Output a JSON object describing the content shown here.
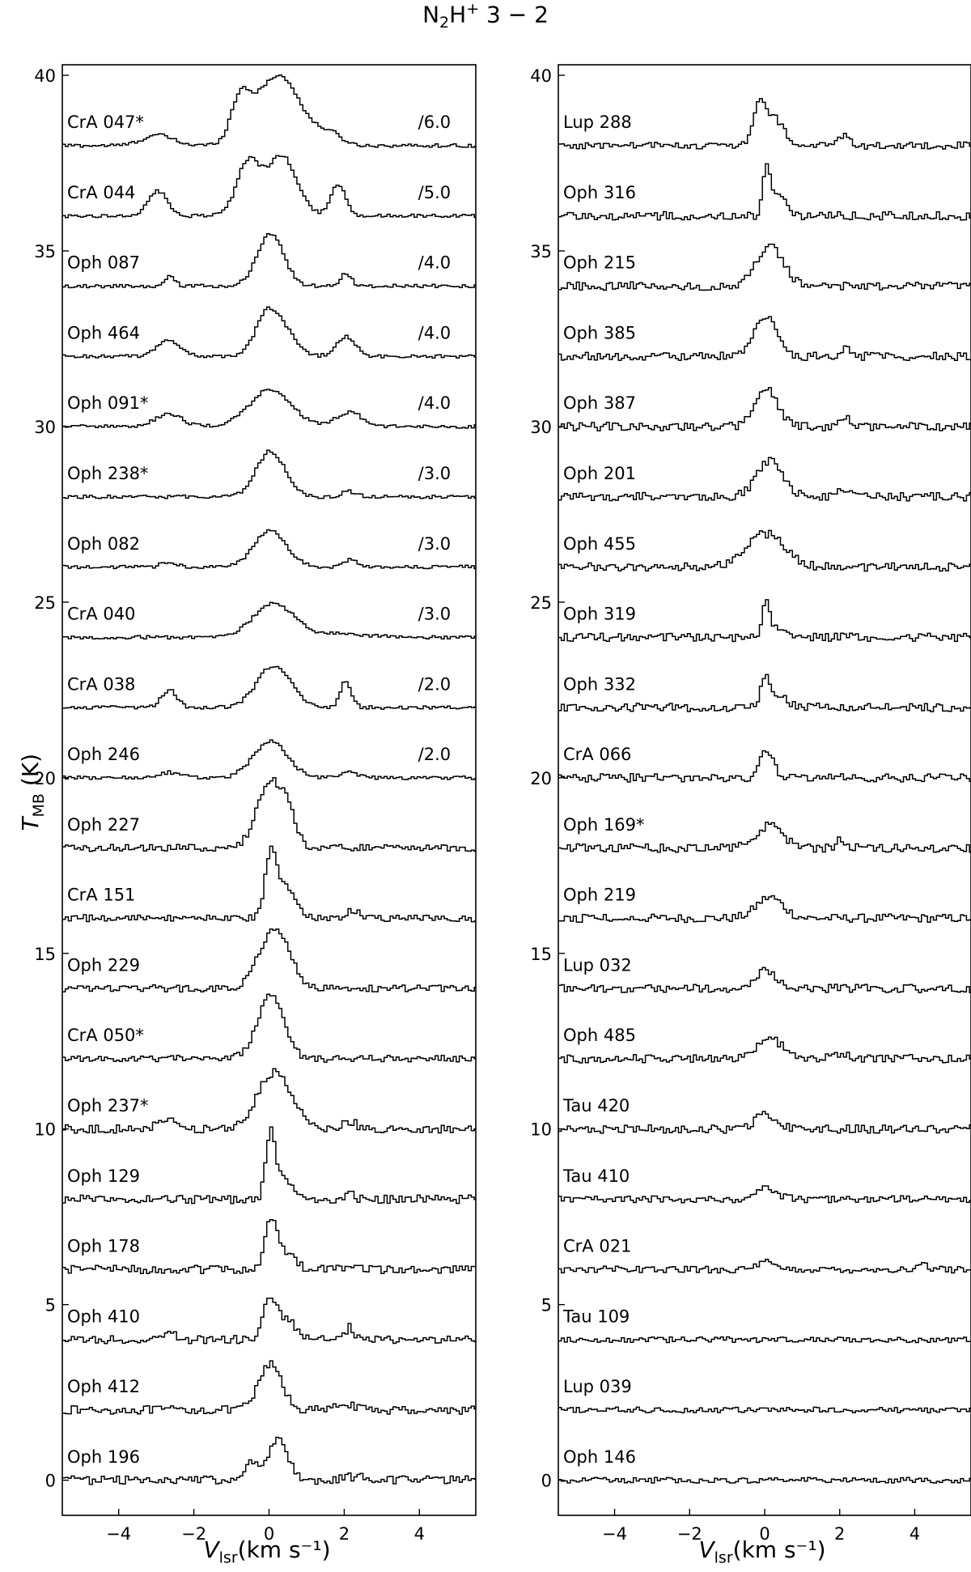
{
  "figure": {
    "title_main": "N",
    "title_sub": "2",
    "title_mid": "H",
    "title_sup": "+",
    "title_tail": " 3 − 2",
    "ylabel_main": "T",
    "ylabel_sub": "MB",
    "ylabel_tail": " (K)",
    "xlabel_main": "V",
    "xlabel_sub": "lsr",
    "xlabel_tail": "(km s⁻¹)"
  },
  "chart_data": [
    {
      "type": "line",
      "panel": "left",
      "xlim": [
        -5.5,
        5.5
      ],
      "ylim": [
        -1.0,
        40.3
      ],
      "xticks": [
        -4,
        -2,
        0,
        2,
        4
      ],
      "yticks": [
        0,
        5,
        10,
        15,
        20,
        25,
        30,
        35,
        40
      ],
      "series": [
        {
          "name": "CrA 047*",
          "offset": 38,
          "scale": "/6.0",
          "peaks": [
            {
              "v": 0.2,
              "a": 2.0,
              "w": 0.6
            },
            {
              "v": -0.8,
              "a": 1.1,
              "w": 0.25
            },
            {
              "v": -3.0,
              "a": 0.3,
              "w": 0.4
            },
            {
              "v": 1.6,
              "a": 0.3,
              "w": 0.3
            }
          ],
          "noise": 0.05
        },
        {
          "name": "CrA 044",
          "offset": 36,
          "scale": "/5.0",
          "peaks": [
            {
              "v": 0.3,
              "a": 1.7,
              "w": 0.4
            },
            {
              "v": -0.6,
              "a": 1.5,
              "w": 0.3
            },
            {
              "v": -3.0,
              "a": 0.7,
              "w": 0.25
            },
            {
              "v": 1.8,
              "a": 0.9,
              "w": 0.2
            }
          ],
          "noise": 0.05
        },
        {
          "name": "Oph 087",
          "offset": 34,
          "scale": "/4.0",
          "peaks": [
            {
              "v": 0.0,
              "a": 1.5,
              "w": 0.35
            },
            {
              "v": -2.7,
              "a": 0.25,
              "w": 0.15
            },
            {
              "v": 2.0,
              "a": 0.35,
              "w": 0.15
            }
          ],
          "noise": 0.05
        },
        {
          "name": "Oph 464",
          "offset": 32,
          "scale": "/4.0",
          "peaks": [
            {
              "v": -0.1,
              "a": 1.2,
              "w": 0.3
            },
            {
              "v": 0.4,
              "a": 0.6,
              "w": 0.3
            },
            {
              "v": -2.7,
              "a": 0.45,
              "w": 0.3
            },
            {
              "v": 2.0,
              "a": 0.55,
              "w": 0.25
            }
          ],
          "noise": 0.05
        },
        {
          "name": "Oph 091*",
          "offset": 30,
          "scale": "/4.0",
          "peaks": [
            {
              "v": 0.0,
              "a": 1.05,
              "w": 0.55
            },
            {
              "v": -2.7,
              "a": 0.35,
              "w": 0.35
            },
            {
              "v": 2.1,
              "a": 0.4,
              "w": 0.35
            }
          ],
          "noise": 0.05
        },
        {
          "name": "Oph 238*",
          "offset": 28,
          "scale": "/3.0",
          "peaks": [
            {
              "v": 0.0,
              "a": 1.3,
              "w": 0.38
            },
            {
              "v": 2.1,
              "a": 0.15,
              "w": 0.2
            }
          ],
          "noise": 0.05
        },
        {
          "name": "Oph 082",
          "offset": 26,
          "scale": "/3.0",
          "peaks": [
            {
              "v": 0.0,
              "a": 1.05,
              "w": 0.42
            },
            {
              "v": -2.7,
              "a": 0.15,
              "w": 0.2
            },
            {
              "v": 2.1,
              "a": 0.2,
              "w": 0.2
            }
          ],
          "noise": 0.05
        },
        {
          "name": "CrA 040",
          "offset": 24,
          "scale": "/3.0",
          "peaks": [
            {
              "v": 0.1,
              "a": 0.95,
              "w": 0.55
            },
            {
              "v": 2.0,
              "a": 0.1,
              "w": 0.6
            }
          ],
          "noise": 0.05
        },
        {
          "name": "CrA 038",
          "offset": 22,
          "scale": "/2.0",
          "peaks": [
            {
              "v": 0.1,
              "a": 1.2,
              "w": 0.45
            },
            {
              "v": -2.7,
              "a": 0.5,
              "w": 0.2
            },
            {
              "v": 2.0,
              "a": 0.75,
              "w": 0.15
            }
          ],
          "noise": 0.05
        },
        {
          "name": "Oph 246",
          "offset": 20,
          "scale": "/2.0",
          "peaks": [
            {
              "v": 0.0,
              "a": 1.05,
              "w": 0.45
            },
            {
              "v": -2.7,
              "a": 0.15,
              "w": 0.3
            },
            {
              "v": 2.1,
              "a": 0.2,
              "w": 0.2
            }
          ],
          "noise": 0.05
        },
        {
          "name": "Oph 227",
          "offset": 18,
          "scale": "",
          "peaks": [
            {
              "v": 0.0,
              "a": 1.9,
              "w": 0.35
            },
            {
              "v": 0.5,
              "a": 0.6,
              "w": 0.2
            }
          ],
          "noise": 0.1
        },
        {
          "name": "CrA 151",
          "offset": 16,
          "scale": "",
          "peaks": [
            {
              "v": 0.0,
              "a": 1.7,
              "w": 0.15
            },
            {
              "v": 0.4,
              "a": 0.9,
              "w": 0.25
            },
            {
              "v": 2.2,
              "a": 0.2,
              "w": 0.2
            }
          ],
          "noise": 0.1
        },
        {
          "name": "Oph 229",
          "offset": 14,
          "scale": "",
          "peaks": [
            {
              "v": 0.1,
              "a": 1.7,
              "w": 0.4
            }
          ],
          "noise": 0.1
        },
        {
          "name": "CrA 050*",
          "offset": 12,
          "scale": "",
          "peaks": [
            {
              "v": 0.0,
              "a": 1.8,
              "w": 0.35
            }
          ],
          "noise": 0.1
        },
        {
          "name": "Oph 237*",
          "offset": 10,
          "scale": "",
          "peaks": [
            {
              "v": 0.1,
              "a": 1.6,
              "w": 0.45
            },
            {
              "v": -2.7,
              "a": 0.2,
              "w": 0.3
            },
            {
              "v": 2.1,
              "a": 0.2,
              "w": 0.2
            }
          ],
          "noise": 0.12
        },
        {
          "name": "Oph 129",
          "offset": 8,
          "scale": "",
          "peaks": [
            {
              "v": 0.0,
              "a": 1.65,
              "w": 0.12
            },
            {
              "v": 0.3,
              "a": 0.6,
              "w": 0.25
            },
            {
              "v": 2.1,
              "a": 0.3,
              "w": 0.1
            }
          ],
          "noise": 0.12
        },
        {
          "name": "Oph 178",
          "offset": 6,
          "scale": "",
          "peaks": [
            {
              "v": 0.0,
              "a": 1.35,
              "w": 0.15
            },
            {
              "v": 0.4,
              "a": 0.5,
              "w": 0.25
            }
          ],
          "noise": 0.12
        },
        {
          "name": "Oph 410",
          "offset": 4,
          "scale": "",
          "peaks": [
            {
              "v": 0.0,
              "a": 1.15,
              "w": 0.2
            },
            {
              "v": 0.5,
              "a": 0.5,
              "w": 0.2
            },
            {
              "v": -2.7,
              "a": 0.25,
              "w": 0.15
            },
            {
              "v": 2.1,
              "a": 0.35,
              "w": 0.1
            }
          ],
          "noise": 0.12
        },
        {
          "name": "Oph 412",
          "offset": 2,
          "scale": "",
          "peaks": [
            {
              "v": 0.0,
              "a": 1.3,
              "w": 0.3
            },
            {
              "v": 2.0,
              "a": 0.2,
              "w": 0.2
            }
          ],
          "noise": 0.12
        },
        {
          "name": "Oph 196",
          "offset": 0,
          "scale": "",
          "peaks": [
            {
              "v": 0.2,
              "a": 1.2,
              "w": 0.25
            },
            {
              "v": -0.5,
              "a": 0.55,
              "w": 0.2
            },
            {
              "v": 2.2,
              "a": 0.1,
              "w": 0.3
            }
          ],
          "noise": 0.12
        }
      ]
    },
    {
      "type": "line",
      "panel": "right",
      "xlim": [
        -5.5,
        5.5
      ],
      "ylim": [
        -1.0,
        40.3
      ],
      "xticks": [
        -4,
        -2,
        0,
        2,
        4
      ],
      "yticks": [
        0,
        5,
        10,
        15,
        20,
        25,
        30,
        35,
        40
      ],
      "series": [
        {
          "name": "Lup 288",
          "offset": 38,
          "scale": "",
          "peaks": [
            {
              "v": -0.2,
              "a": 1.1,
              "w": 0.15
            },
            {
              "v": 0.2,
              "a": 0.8,
              "w": 0.25
            },
            {
              "v": 2.1,
              "a": 0.3,
              "w": 0.15
            }
          ],
          "noise": 0.1
        },
        {
          "name": "Oph 316",
          "offset": 36,
          "scale": "",
          "peaks": [
            {
              "v": 0.0,
              "a": 1.2,
              "w": 0.1
            },
            {
              "v": 0.3,
              "a": 0.6,
              "w": 0.2
            }
          ],
          "noise": 0.12
        },
        {
          "name": "Oph 215",
          "offset": 34,
          "scale": "",
          "peaks": [
            {
              "v": 0.1,
              "a": 1.15,
              "w": 0.35
            }
          ],
          "noise": 0.12
        },
        {
          "name": "Oph 385",
          "offset": 32,
          "scale": "",
          "peaks": [
            {
              "v": 0.0,
              "a": 1.1,
              "w": 0.3
            },
            {
              "v": 2.1,
              "a": 0.2,
              "w": 0.15
            }
          ],
          "noise": 0.12
        },
        {
          "name": "Oph 387",
          "offset": 30,
          "scale": "",
          "peaks": [
            {
              "v": 0.0,
              "a": 1.05,
              "w": 0.3
            },
            {
              "v": 2.1,
              "a": 0.25,
              "w": 0.15
            }
          ],
          "noise": 0.12
        },
        {
          "name": "Oph 201",
          "offset": 28,
          "scale": "",
          "peaks": [
            {
              "v": 0.1,
              "a": 1.0,
              "w": 0.35
            },
            {
              "v": 2.1,
              "a": 0.2,
              "w": 0.2
            }
          ],
          "noise": 0.12
        },
        {
          "name": "Oph 455",
          "offset": 26,
          "scale": "",
          "peaks": [
            {
              "v": 0.0,
              "a": 0.95,
              "w": 0.5
            }
          ],
          "noise": 0.12
        },
        {
          "name": "Oph 319",
          "offset": 24,
          "scale": "",
          "peaks": [
            {
              "v": 0.0,
              "a": 0.9,
              "w": 0.08
            },
            {
              "v": 0.3,
              "a": 0.3,
              "w": 0.3
            }
          ],
          "noise": 0.12
        },
        {
          "name": "Oph 332",
          "offset": 22,
          "scale": "",
          "peaks": [
            {
              "v": 0.0,
              "a": 0.8,
              "w": 0.15
            },
            {
              "v": 0.4,
              "a": 0.3,
              "w": 0.2
            }
          ],
          "noise": 0.12
        },
        {
          "name": "CrA 066",
          "offset": 20,
          "scale": "",
          "peaks": [
            {
              "v": 0.0,
              "a": 0.75,
              "w": 0.18
            }
          ],
          "noise": 0.12
        },
        {
          "name": "Oph 169*",
          "offset": 18,
          "scale": "",
          "peaks": [
            {
              "v": 0.1,
              "a": 0.65,
              "w": 0.35
            },
            {
              "v": 2.0,
              "a": 0.25,
              "w": 0.1
            }
          ],
          "noise": 0.12
        },
        {
          "name": "Oph 219",
          "offset": 16,
          "scale": "",
          "peaks": [
            {
              "v": 0.1,
              "a": 0.6,
              "w": 0.35
            }
          ],
          "noise": 0.12
        },
        {
          "name": "Lup 032",
          "offset": 14,
          "scale": "",
          "peaks": [
            {
              "v": 0.0,
              "a": 0.55,
              "w": 0.25
            }
          ],
          "noise": 0.12
        },
        {
          "name": "Oph 485",
          "offset": 12,
          "scale": "",
          "peaks": [
            {
              "v": 0.1,
              "a": 0.55,
              "w": 0.35
            },
            {
              "v": 2.0,
              "a": 0.15,
              "w": 0.2
            }
          ],
          "noise": 0.12
        },
        {
          "name": "Tau 420",
          "offset": 10,
          "scale": "",
          "peaks": [
            {
              "v": 0.0,
              "a": 0.4,
              "w": 0.3
            }
          ],
          "noise": 0.12
        },
        {
          "name": "Tau 410",
          "offset": 8,
          "scale": "",
          "peaks": [
            {
              "v": 0.0,
              "a": 0.3,
              "w": 0.3
            }
          ],
          "noise": 0.1
        },
        {
          "name": "CrA 021",
          "offset": 6,
          "scale": "",
          "peaks": [
            {
              "v": 0.0,
              "a": 0.2,
              "w": 0.2
            },
            {
              "v": 4.2,
              "a": 0.15,
              "w": 0.1
            }
          ],
          "noise": 0.1
        },
        {
          "name": "Tau 109",
          "offset": 4,
          "scale": "",
          "peaks": [],
          "noise": 0.08
        },
        {
          "name": "Lup 039",
          "offset": 2,
          "scale": "",
          "peaks": [],
          "noise": 0.08
        },
        {
          "name": "Oph 146",
          "offset": 0,
          "scale": "",
          "peaks": [],
          "noise": 0.08
        }
      ]
    }
  ]
}
